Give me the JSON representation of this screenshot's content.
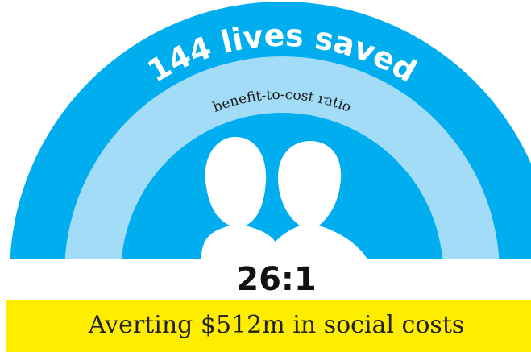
{
  "title": "144 lives saved",
  "ratio_label": "benefit-to-cost ratio",
  "ratio": "26:1",
  "footer": "Averting $512m in social costs"
}
